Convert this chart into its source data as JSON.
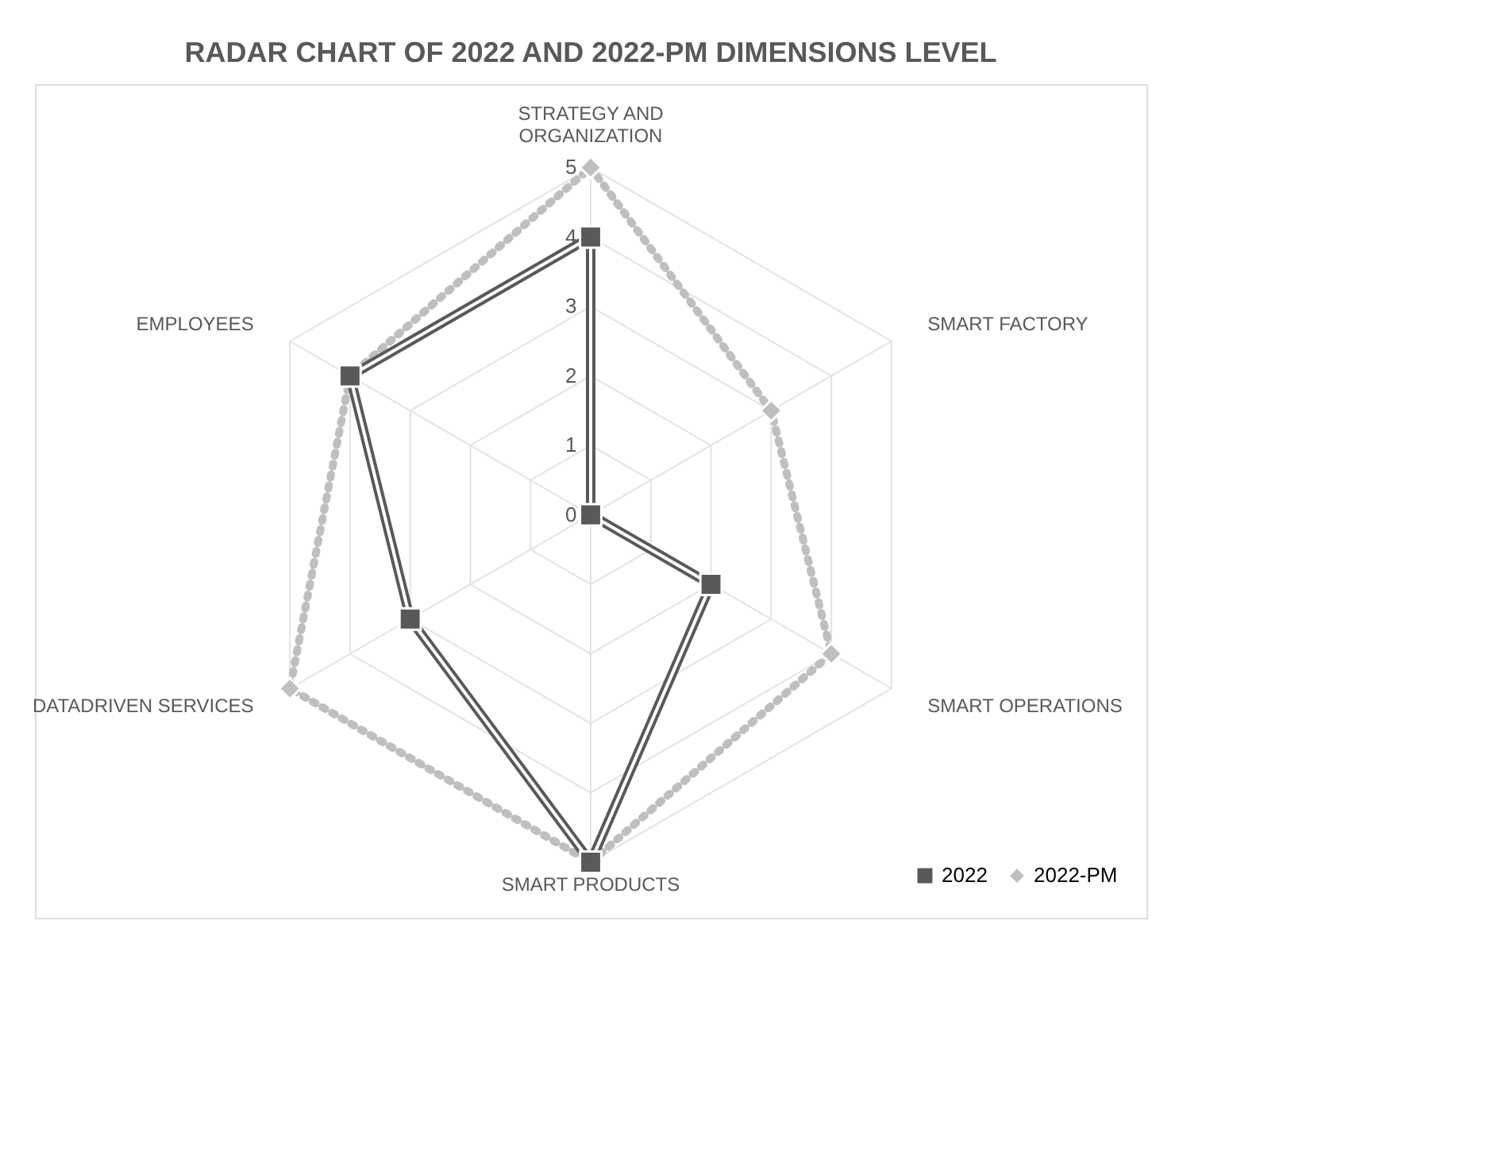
{
  "chart_data": {
    "type": "radar",
    "title": "RADAR CHART OF 2022 AND 2022-PM DIMENSIONS LEVEL",
    "categories": [
      "STRATEGY AND ORGANIZATION",
      "SMART FACTORY",
      "SMART OPERATIONS",
      "SMART PRODUCTS",
      "DATADRIVEN SERVICES",
      "EMPLOYEES"
    ],
    "series": [
      {
        "name": "2022",
        "color": "#595959",
        "values": [
          4,
          0,
          2,
          5,
          3,
          4
        ],
        "marker": "square",
        "line_style": "solid"
      },
      {
        "name": "2022-PM",
        "color": "#bfbfbf",
        "values": [
          5,
          3,
          4,
          5,
          5,
          4
        ],
        "marker": "diamond",
        "line_style": "dotted"
      }
    ],
    "ylim": [
      0,
      5
    ],
    "yticks": [
      0,
      1,
      2,
      3,
      4,
      5
    ],
    "grid": true,
    "legend": "bottom right"
  }
}
